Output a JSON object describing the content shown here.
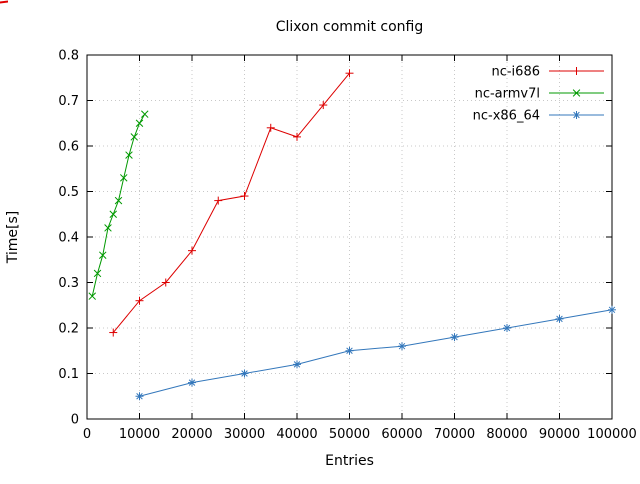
{
  "chart_data": {
    "type": "line",
    "title": "Clixon commit config",
    "xlabel": "Entries",
    "ylabel": "Time[s]",
    "xlim": [
      0,
      100000
    ],
    "ylim": [
      0,
      0.8
    ],
    "grid": true,
    "legend_position": "top-right-inside",
    "colors": {
      "grid": "#c8c8c8",
      "border": "#000000",
      "background": "#ffffff"
    },
    "xtick_values": [
      0,
      10000,
      20000,
      30000,
      40000,
      50000,
      60000,
      70000,
      80000,
      90000,
      100000
    ],
    "xtick_labels": [
      "0",
      "10000",
      "20000",
      "30000",
      "40000",
      "50000",
      "60000",
      "70000",
      "80000",
      "90000",
      "100000"
    ],
    "ytick_values": [
      0,
      0.1,
      0.2,
      0.3,
      0.4,
      0.5,
      0.6,
      0.7,
      0.8
    ],
    "ytick_labels": [
      "0",
      "0.1",
      "0.2",
      "0.3",
      "0.4",
      "0.5",
      "0.6",
      "0.7",
      "0.8"
    ],
    "series": [
      {
        "name": "nc-i686",
        "color": "#dd0000",
        "marker": "plus",
        "x": [
          5000,
          10000,
          15000,
          20000,
          25000,
          30000,
          35000,
          40000,
          45000,
          50000
        ],
        "y": [
          0.19,
          0.26,
          0.3,
          0.37,
          0.48,
          0.49,
          0.64,
          0.62,
          0.69,
          0.76
        ]
      },
      {
        "name": "nc-armv7l",
        "color": "#009900",
        "marker": "cross",
        "x": [
          1000,
          2000,
          3000,
          4000,
          5000,
          6000,
          7000,
          8000,
          9000,
          10000,
          11000
        ],
        "y": [
          0.27,
          0.32,
          0.36,
          0.42,
          0.45,
          0.48,
          0.53,
          0.58,
          0.62,
          0.65,
          0.67
        ]
      },
      {
        "name": "nc-x86_64",
        "color": "#3377bb",
        "marker": "asterisk",
        "x": [
          10000,
          20000,
          30000,
          40000,
          50000,
          60000,
          70000,
          80000,
          90000,
          100000
        ],
        "y": [
          0.05,
          0.08,
          0.1,
          0.12,
          0.15,
          0.16,
          0.18,
          0.2,
          0.22,
          0.24
        ]
      }
    ]
  }
}
